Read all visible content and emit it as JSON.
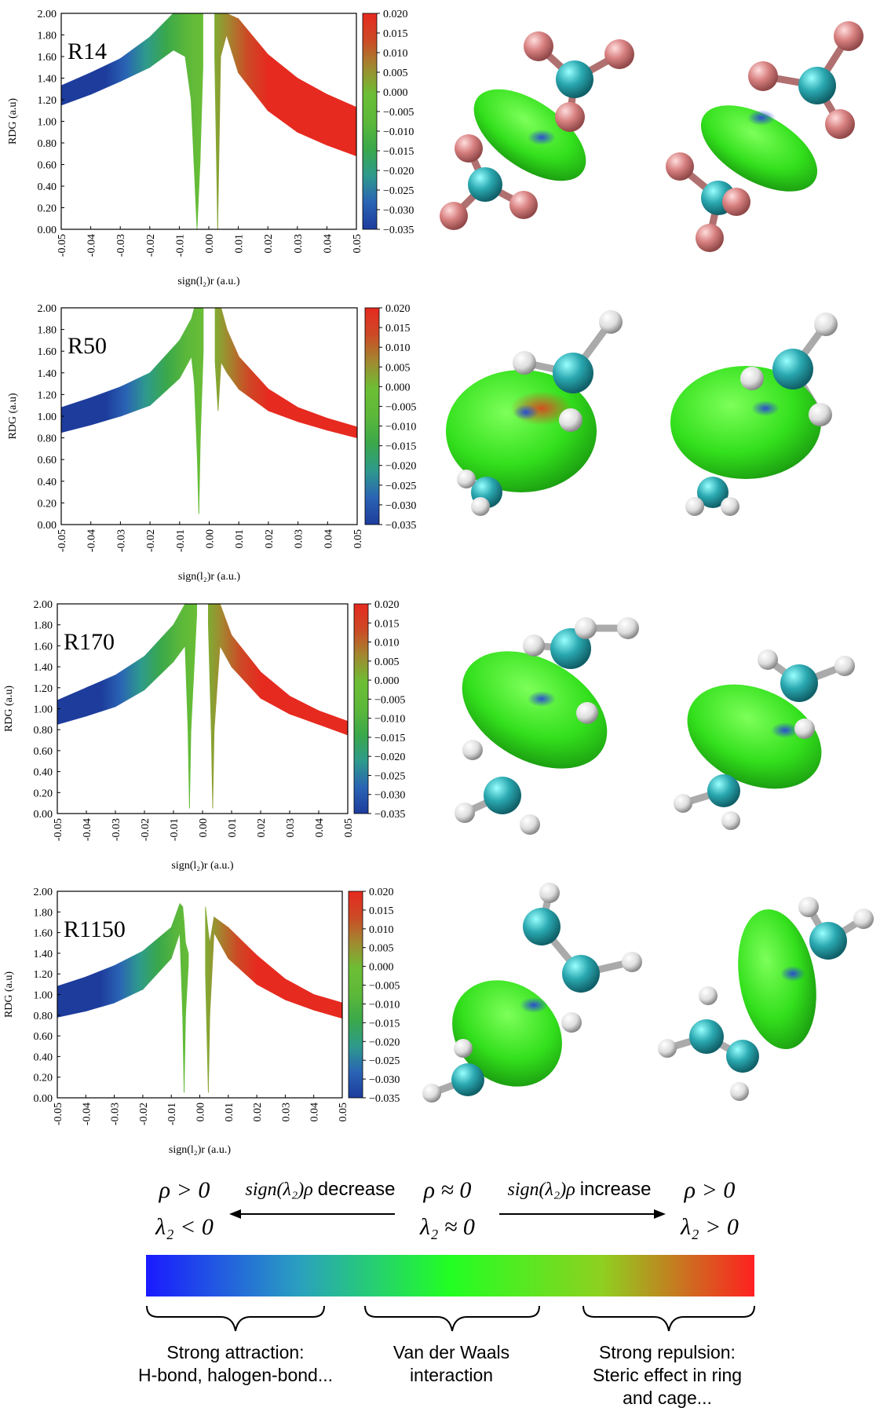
{
  "chart_data": [
    {
      "type": "scatter",
      "label": "R14",
      "xlabel": "sign(l₂)r (a.u.)",
      "ylabel": "RDG (a.u)",
      "x": [
        -0.05,
        -0.04,
        -0.03,
        -0.02,
        -0.012,
        -0.008,
        -0.006,
        -0.005,
        -0.004,
        -0.003,
        -0.002,
        null,
        0.002,
        0.003,
        0.004,
        0.006,
        0.01,
        0.02,
        0.03,
        0.04,
        0.05
      ],
      "upper": [
        1.33,
        1.45,
        1.58,
        1.78,
        2,
        2,
        2,
        2,
        2,
        2,
        2,
        null,
        2,
        2,
        2,
        2,
        1.95,
        1.62,
        1.4,
        1.25,
        1.13
      ],
      "lower": [
        1.15,
        1.25,
        1.37,
        1.5,
        1.66,
        1.6,
        1.2,
        0.6,
        0,
        0.6,
        1.5,
        null,
        1.6,
        0,
        1.6,
        1.8,
        1.45,
        1.1,
        0.9,
        0.78,
        0.68
      ],
      "xlim": [
        -0.05,
        0.05
      ],
      "ylim": [
        0,
        2
      ],
      "xticks": [
        -0.05,
        -0.04,
        -0.03,
        -0.02,
        -0.01,
        {
          "value": 0,
          "label": "0.00"
        },
        0.01,
        0.02,
        0.03,
        0.04,
        0.05
      ],
      "yticks": [
        {
          "value": 0,
          "label": "0.00"
        },
        {
          "value": 0.2,
          "label": "0.20"
        },
        {
          "value": 0.4,
          "label": "0.40"
        },
        {
          "value": 0.6,
          "label": "0.60"
        },
        {
          "value": 0.8,
          "label": "0.80"
        },
        {
          "value": 1,
          "label": "1.00"
        },
        {
          "value": 1.2,
          "label": "1.20"
        },
        {
          "value": 1.4,
          "label": "1.40"
        },
        {
          "value": 1.6,
          "label": "1.60"
        },
        {
          "value": 1.8,
          "label": "1.80"
        },
        {
          "value": 2,
          "label": "2.00"
        }
      ],
      "clim": [
        -0.035,
        0.02
      ],
      "cticks": [
        {
          "value": 0.02,
          "label": "0.020"
        },
        0.015,
        {
          "value": 0.01,
          "label": "0.010"
        },
        0.005,
        {
          "value": 0,
          "label": "0.000"
        },
        {
          "value": -0.005,
          "label": "−0.005"
        },
        {
          "value": -0.01,
          "label": "−0.010"
        },
        {
          "value": -0.015,
          "label": "−0.015"
        },
        {
          "value": -0.02,
          "label": "−0.020"
        },
        {
          "value": -0.025,
          "label": "−0.025"
        },
        {
          "value": -0.03,
          "label": "−0.030"
        },
        {
          "value": -0.035,
          "label": "−0.035"
        }
      ],
      "colormap": [
        "#1d3c9c",
        "#2a64b4",
        "#2e9a8c",
        "#3aa84a",
        "#5cb83a",
        "#6cbf34",
        "#a08a30",
        "#cc4a25",
        "#e62a20"
      ]
    },
    {
      "type": "scatter",
      "label": "R50",
      "xlabel": "sign(l₂)r (a.u.)",
      "ylabel": "RDG (a.u)",
      "x": [
        -0.05,
        -0.04,
        -0.03,
        -0.02,
        -0.01,
        -0.006,
        -0.005,
        -0.004,
        -0.0035,
        -0.003,
        -0.002,
        null,
        0.002,
        0.003,
        0.004,
        0.006,
        0.01,
        0.02,
        0.03,
        0.04,
        0.05
      ],
      "upper": [
        1.08,
        1.17,
        1.27,
        1.4,
        1.7,
        1.9,
        2,
        2,
        2,
        2,
        2,
        null,
        2,
        2,
        2,
        1.8,
        1.55,
        1.25,
        1.08,
        0.98,
        0.9
      ],
      "lower": [
        0.85,
        0.92,
        1,
        1.1,
        1.35,
        1.55,
        1.3,
        0.6,
        0.1,
        0.8,
        1.6,
        null,
        1.5,
        1.05,
        1.5,
        1.4,
        1.25,
        1.05,
        0.95,
        0.87,
        0.8
      ],
      "xlim": [
        -0.05,
        0.05
      ],
      "ylim": [
        0,
        2
      ],
      "xticks": [
        -0.05,
        -0.04,
        -0.03,
        -0.02,
        -0.01,
        {
          "value": 0,
          "label": "0.00"
        },
        0.01,
        0.02,
        0.03,
        0.04,
        0.05
      ],
      "yticks": [
        {
          "value": 0,
          "label": "0.00"
        },
        {
          "value": 0.2,
          "label": "0.20"
        },
        {
          "value": 0.4,
          "label": "0.40"
        },
        {
          "value": 0.6,
          "label": "0.60"
        },
        {
          "value": 0.8,
          "label": "0.80"
        },
        {
          "value": 1,
          "label": "1.00"
        },
        {
          "value": 1.2,
          "label": "1.20"
        },
        {
          "value": 1.4,
          "label": "1.40"
        },
        {
          "value": 1.6,
          "label": "1.60"
        },
        {
          "value": 1.8,
          "label": "1.80"
        },
        {
          "value": 2,
          "label": "2.00"
        }
      ],
      "clim": [
        -0.035,
        0.02
      ],
      "cticks": [
        {
          "value": 0.02,
          "label": "0.020"
        },
        0.015,
        {
          "value": 0.01,
          "label": "0.010"
        },
        0.005,
        {
          "value": 0,
          "label": "0.000"
        },
        {
          "value": -0.005,
          "label": "−0.005"
        },
        {
          "value": -0.01,
          "label": "−0.010"
        },
        {
          "value": -0.015,
          "label": "−0.015"
        },
        {
          "value": -0.02,
          "label": "−0.020"
        },
        {
          "value": -0.025,
          "label": "−0.025"
        },
        {
          "value": -0.03,
          "label": "−0.030"
        },
        {
          "value": -0.035,
          "label": "−0.035"
        }
      ],
      "colormap": [
        "#1d3c9c",
        "#2a64b4",
        "#2e9a8c",
        "#3aa84a",
        "#5cb83a",
        "#6cbf34",
        "#a08a30",
        "#cc4a25",
        "#e62a20"
      ]
    },
    {
      "type": "scatter",
      "label": "R170",
      "xlabel": "sign(l₂)r (a.u.)",
      "ylabel": "RDG (a.u)",
      "x": [
        -0.05,
        -0.04,
        -0.03,
        -0.02,
        -0.01,
        -0.006,
        -0.005,
        -0.0045,
        -0.004,
        -0.002,
        null,
        0.002,
        0.003,
        0.0035,
        0.004,
        0.006,
        0.01,
        0.02,
        0.03,
        0.04,
        0.05
      ],
      "upper": [
        1.08,
        1.2,
        1.32,
        1.5,
        1.8,
        2,
        2,
        2,
        2,
        2,
        null,
        2,
        2,
        2,
        2,
        2,
        1.7,
        1.35,
        1.12,
        0.98,
        0.88
      ],
      "lower": [
        0.85,
        0.93,
        1.02,
        1.18,
        1.45,
        1.6,
        0.8,
        0.05,
        0.8,
        1.9,
        null,
        1.8,
        0.8,
        0.05,
        0.8,
        1.6,
        1.4,
        1.1,
        0.95,
        0.85,
        0.75
      ],
      "xlim": [
        -0.05,
        0.05
      ],
      "ylim": [
        0,
        2
      ],
      "xticks": [
        -0.05,
        -0.04,
        -0.03,
        -0.02,
        -0.01,
        {
          "value": 0,
          "label": "0.00"
        },
        0.01,
        0.02,
        0.03,
        0.04,
        0.05
      ],
      "yticks": [
        {
          "value": 0,
          "label": "0.00"
        },
        {
          "value": 0.2,
          "label": "0.20"
        },
        {
          "value": 0.4,
          "label": "0.40"
        },
        {
          "value": 0.6,
          "label": "0.60"
        },
        {
          "value": 0.8,
          "label": "0.80"
        },
        {
          "value": 1,
          "label": "1.00"
        },
        {
          "value": 1.2,
          "label": "1.20"
        },
        {
          "value": 1.4,
          "label": "1.40"
        },
        {
          "value": 1.6,
          "label": "1.60"
        },
        {
          "value": 1.8,
          "label": "1.80"
        },
        {
          "value": 2,
          "label": "2.00"
        }
      ],
      "clim": [
        -0.035,
        0.02
      ],
      "cticks": [
        {
          "value": 0.02,
          "label": "0.020"
        },
        0.015,
        {
          "value": 0.01,
          "label": "0.010"
        },
        0.005,
        {
          "value": 0,
          "label": "0.000"
        },
        {
          "value": -0.005,
          "label": "−0.005"
        },
        {
          "value": -0.01,
          "label": "−0.010"
        },
        {
          "value": -0.015,
          "label": "−0.015"
        },
        {
          "value": -0.02,
          "label": "−0.020"
        },
        {
          "value": -0.025,
          "label": "−0.025"
        },
        {
          "value": -0.03,
          "label": "−0.030"
        },
        {
          "value": -0.035,
          "label": "−0.035"
        }
      ],
      "colormap": [
        "#1d3c9c",
        "#2a64b4",
        "#2e9a8c",
        "#3aa84a",
        "#5cb83a",
        "#6cbf34",
        "#a08a30",
        "#cc4a25",
        "#e62a20"
      ]
    },
    {
      "type": "scatter",
      "label": "R1150",
      "xlabel": "sign(l₂)r (a.u.)",
      "ylabel": "RDG (a.u)",
      "x": [
        -0.05,
        -0.04,
        -0.03,
        -0.02,
        -0.01,
        -0.007,
        -0.006,
        -0.0055,
        -0.005,
        -0.004,
        null,
        0.002,
        0.003,
        0.0035,
        0.005,
        0.01,
        0.02,
        0.03,
        0.04,
        0.05
      ],
      "upper": [
        1.08,
        1.17,
        1.28,
        1.42,
        1.65,
        1.88,
        1.85,
        1.7,
        1.5,
        1.4,
        null,
        1.85,
        1.6,
        1.5,
        1.75,
        1.65,
        1.38,
        1.15,
        1,
        0.92
      ],
      "lower": [
        0.78,
        0.84,
        0.92,
        1.05,
        1.35,
        1.6,
        0.8,
        0.05,
        0.8,
        1.3,
        null,
        1.2,
        0.05,
        0.8,
        1.6,
        1.35,
        1.1,
        0.95,
        0.85,
        0.77
      ],
      "xlim": [
        -0.05,
        0.05
      ],
      "ylim": [
        0,
        2
      ],
      "xticks": [
        -0.05,
        -0.04,
        -0.03,
        -0.02,
        -0.01,
        {
          "value": 0,
          "label": "0.00"
        },
        0.01,
        0.02,
        0.03,
        0.04,
        0.05
      ],
      "yticks": [
        {
          "value": 0,
          "label": "0.00"
        },
        {
          "value": 0.2,
          "label": "0.20"
        },
        {
          "value": 0.4,
          "label": "0.40"
        },
        {
          "value": 0.6,
          "label": "0.60"
        },
        {
          "value": 0.8,
          "label": "0.80"
        },
        {
          "value": 1,
          "label": "1.00"
        },
        {
          "value": 1.2,
          "label": "1.20"
        },
        {
          "value": 1.4,
          "label": "1.40"
        },
        {
          "value": 1.6,
          "label": "1.60"
        },
        {
          "value": 1.8,
          "label": "1.80"
        },
        {
          "value": 2,
          "label": "2.00"
        }
      ],
      "clim": [
        -0.035,
        0.02
      ],
      "cticks": [
        {
          "value": 0.02,
          "label": "0.020"
        },
        0.015,
        {
          "value": 0.01,
          "label": "0.010"
        },
        0.005,
        {
          "value": 0,
          "label": "0.000"
        },
        {
          "value": -0.005,
          "label": "−0.005"
        },
        {
          "value": -0.01,
          "label": "−0.010"
        },
        {
          "value": -0.015,
          "label": "−0.015"
        },
        {
          "value": -0.02,
          "label": "−0.020"
        },
        {
          "value": -0.025,
          "label": "−0.025"
        },
        {
          "value": -0.03,
          "label": "−0.030"
        },
        {
          "value": -0.035,
          "label": "−0.035"
        }
      ],
      "colormap": [
        "#1d3c9c",
        "#2a64b4",
        "#2e9a8c",
        "#3aa84a",
        "#5cb83a",
        "#6cbf34",
        "#a08a30",
        "#cc4a25",
        "#e62a20"
      ]
    }
  ],
  "scale_legend": {
    "left_rho": "ρ > 0",
    "left_lambda": "λ₂ < 0",
    "decrease_expr": "sign(λ₂)ρ",
    "decrease_word": "decrease",
    "mid_rho": "ρ ≈ 0",
    "mid_lambda": "λ₂ ≈ 0",
    "increase_expr": "sign(λ₂)ρ",
    "increase_word": "increase",
    "right_rho": "ρ > 0",
    "right_lambda": "λ₂ > 0",
    "colors": [
      "#1a1aff",
      "#2a9fc0",
      "#22ff22",
      "#8fd020",
      "#ff2020"
    ],
    "left_text": [
      "Strong attraction:",
      "H-bond, halogen-bond..."
    ],
    "mid_text": [
      "Van der Waals",
      "interaction"
    ],
    "right_text": [
      "Strong repulsion:",
      "Steric effect in ring",
      "and cage..."
    ]
  }
}
